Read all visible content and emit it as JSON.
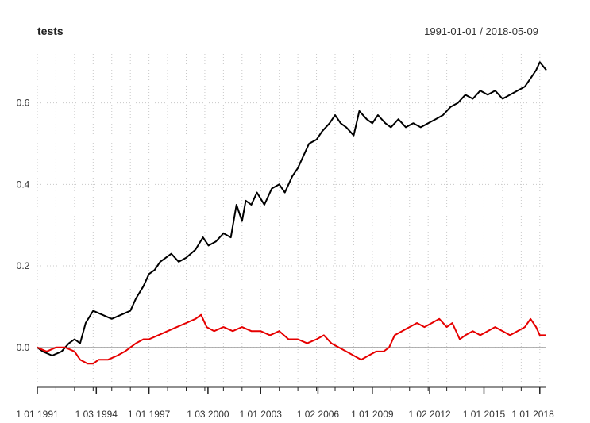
{
  "chart_data": {
    "type": "line",
    "title": "tests",
    "date_range": "1991-01-01 / 2018-05-09",
    "xlabel": "",
    "ylabel": "",
    "ylim": [
      -0.09,
      0.72
    ],
    "yticks": [
      0.0,
      0.2,
      0.4,
      0.6
    ],
    "ytick_labels": [
      "0.0",
      "0.2",
      "0.4",
      "0.6"
    ],
    "xticks": [
      1991.0,
      1994.17,
      1997.0,
      2000.17,
      2003.0,
      2006.08,
      2009.0,
      2012.08,
      2015.0,
      2018.0
    ],
    "xtick_labels": [
      "1 01 1991",
      "1 03 1994",
      "1 01 1997",
      "1 03 2000",
      "1 01 2003",
      "1 02 2006",
      "1 01 2009",
      "1 02 2012",
      "1 01 2015",
      "1 01 2018"
    ],
    "xlim": [
      1991.0,
      2018.35
    ],
    "grid": true,
    "baseline": 0.0,
    "series": [
      {
        "color": "#000000",
        "x": [
          1991.0,
          1991.3,
          1991.8,
          1992.3,
          1992.7,
          1993.0,
          1993.3,
          1993.6,
          1994.0,
          1994.5,
          1995.0,
          1995.5,
          1996.0,
          1996.3,
          1996.7,
          1997.0,
          1997.3,
          1997.6,
          1997.9,
          1998.2,
          1998.6,
          1999.0,
          1999.5,
          1999.9,
          2000.2,
          2000.6,
          2001.0,
          2001.4,
          2001.7,
          2002.0,
          2002.2,
          2002.5,
          2002.8,
          2003.2,
          2003.6,
          2004.0,
          2004.3,
          2004.7,
          2005.0,
          2005.3,
          2005.6,
          2006.0,
          2006.3,
          2006.7,
          2007.0,
          2007.3,
          2007.6,
          2008.0,
          2008.3,
          2008.7,
          2009.0,
          2009.3,
          2009.7,
          2010.0,
          2010.4,
          2010.8,
          2011.2,
          2011.6,
          2012.0,
          2012.4,
          2012.8,
          2013.2,
          2013.6,
          2014.0,
          2014.4,
          2014.8,
          2015.2,
          2015.6,
          2016.0,
          2016.4,
          2016.8,
          2017.2,
          2017.5,
          2017.8,
          2018.0,
          2018.35
        ],
        "y": [
          0.0,
          -0.01,
          -0.02,
          -0.01,
          0.01,
          0.02,
          0.01,
          0.06,
          0.09,
          0.08,
          0.07,
          0.08,
          0.09,
          0.12,
          0.15,
          0.18,
          0.19,
          0.21,
          0.22,
          0.23,
          0.21,
          0.22,
          0.24,
          0.27,
          0.25,
          0.26,
          0.28,
          0.27,
          0.35,
          0.31,
          0.36,
          0.35,
          0.38,
          0.35,
          0.39,
          0.4,
          0.38,
          0.42,
          0.44,
          0.47,
          0.5,
          0.51,
          0.53,
          0.55,
          0.57,
          0.55,
          0.54,
          0.52,
          0.58,
          0.56,
          0.55,
          0.57,
          0.55,
          0.54,
          0.56,
          0.54,
          0.55,
          0.54,
          0.55,
          0.56,
          0.57,
          0.59,
          0.6,
          0.62,
          0.61,
          0.63,
          0.62,
          0.63,
          0.61,
          0.62,
          0.63,
          0.64,
          0.66,
          0.68,
          0.7,
          0.68
        ]
      },
      {
        "color": "#e60000",
        "x": [
          1991.0,
          1991.5,
          1992.0,
          1992.5,
          1993.0,
          1993.3,
          1993.7,
          1994.0,
          1994.3,
          1994.8,
          1995.3,
          1995.7,
          1996.0,
          1996.3,
          1996.7,
          1997.0,
          1997.5,
          1998.0,
          1998.5,
          1999.0,
          1999.5,
          1999.8,
          2000.1,
          2000.5,
          2001.0,
          2001.5,
          2002.0,
          2002.5,
          2003.0,
          2003.5,
          2004.0,
          2004.5,
          2005.0,
          2005.5,
          2006.0,
          2006.4,
          2006.8,
          2007.2,
          2007.6,
          2008.0,
          2008.4,
          2008.8,
          2009.2,
          2009.6,
          2009.9,
          2010.2,
          2010.6,
          2011.0,
          2011.4,
          2011.8,
          2012.2,
          2012.6,
          2013.0,
          2013.3,
          2013.7,
          2014.0,
          2014.4,
          2014.8,
          2015.2,
          2015.6,
          2016.0,
          2016.4,
          2016.8,
          2017.2,
          2017.5,
          2017.8,
          2018.0,
          2018.35
        ],
        "y": [
          0.0,
          -0.01,
          0.0,
          0.0,
          -0.01,
          -0.03,
          -0.04,
          -0.04,
          -0.03,
          -0.03,
          -0.02,
          -0.01,
          0.0,
          0.01,
          0.02,
          0.02,
          0.03,
          0.04,
          0.05,
          0.06,
          0.07,
          0.08,
          0.05,
          0.04,
          0.05,
          0.04,
          0.05,
          0.04,
          0.04,
          0.03,
          0.04,
          0.02,
          0.02,
          0.01,
          0.02,
          0.03,
          0.01,
          0.0,
          -0.01,
          -0.02,
          -0.03,
          -0.02,
          -0.01,
          -0.01,
          0.0,
          0.03,
          0.04,
          0.05,
          0.06,
          0.05,
          0.06,
          0.07,
          0.05,
          0.06,
          0.02,
          0.03,
          0.04,
          0.03,
          0.04,
          0.05,
          0.04,
          0.03,
          0.04,
          0.05,
          0.07,
          0.05,
          0.03,
          0.03
        ]
      }
    ]
  }
}
